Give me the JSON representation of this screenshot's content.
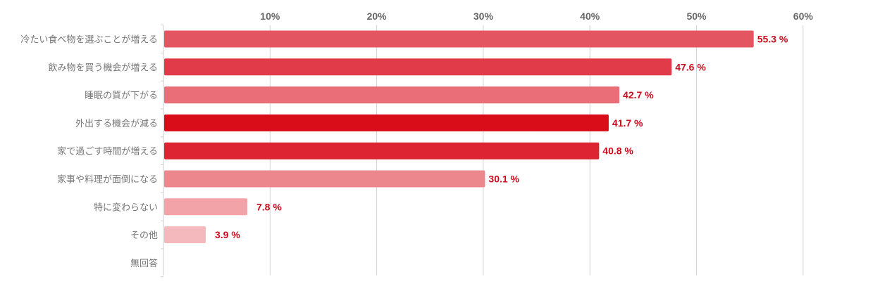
{
  "chart_data": {
    "type": "bar",
    "orientation": "horizontal",
    "categories": [
      "冷たい食べ物を選ぶことが増える",
      "飲み物を買う機会が増える",
      "睡眠の質が下がる",
      "外出する機会が減る",
      "家で過ごす時間が増える",
      "家事や料理が面倒になる",
      "特に変わらない",
      "その他",
      "無回答"
    ],
    "values": [
      55.3,
      47.6,
      42.7,
      41.7,
      40.8,
      30.1,
      7.8,
      3.9,
      null
    ],
    "value_labels": [
      "55.3 %",
      "47.6 %",
      "42.7 %",
      "41.7 %",
      "40.8 %",
      "30.1 %",
      "7.8 %",
      "3.9 %",
      ""
    ],
    "bar_colors": [
      "#e35561",
      "#e13a48",
      "#ea6e78",
      "#d90d1a",
      "#dd2432",
      "#ec878e",
      "#f1a3a8",
      "#f4b9bc",
      "#f4b9bc"
    ],
    "x_ticks": [
      10,
      20,
      30,
      40,
      50,
      60
    ],
    "x_tick_labels": [
      "10%",
      "20%",
      "30%",
      "40%",
      "50%",
      "60%"
    ],
    "xlim": [
      0,
      66.5
    ],
    "grid": true,
    "title": "",
    "xlabel": "",
    "ylabel": ""
  }
}
